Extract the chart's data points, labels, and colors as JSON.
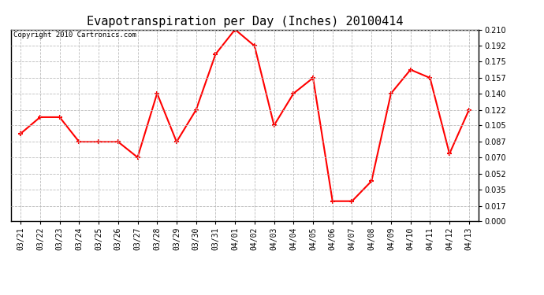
{
  "title": "Evapotranspiration per Day (Inches) 20100414",
  "copyright": "Copyright 2010 Cartronics.com",
  "x_labels": [
    "03/21",
    "03/22",
    "03/23",
    "03/24",
    "03/25",
    "03/26",
    "03/27",
    "03/28",
    "03/29",
    "03/30",
    "03/31",
    "04/01",
    "04/02",
    "04/03",
    "04/04",
    "04/05",
    "04/06",
    "04/07",
    "04/08",
    "04/09",
    "04/10",
    "04/11",
    "04/12",
    "04/13"
  ],
  "y_values": [
    0.096,
    0.114,
    0.114,
    0.087,
    0.087,
    0.087,
    0.07,
    0.14,
    0.087,
    0.122,
    0.183,
    0.21,
    0.192,
    0.105,
    0.14,
    0.157,
    0.022,
    0.022,
    0.044,
    0.14,
    0.166,
    0.157,
    0.074,
    0.122
  ],
  "line_color": "#ff0000",
  "marker": "+",
  "marker_size": 5,
  "marker_edge_width": 1.5,
  "line_width": 1.5,
  "background_color": "#ffffff",
  "grid_color": "#bbbbbb",
  "ylim": [
    0.0,
    0.21
  ],
  "yticks": [
    0.0,
    0.017,
    0.035,
    0.052,
    0.07,
    0.087,
    0.105,
    0.122,
    0.14,
    0.157,
    0.175,
    0.192,
    0.21
  ],
  "title_fontsize": 11,
  "tick_fontsize": 7,
  "copyright_fontsize": 6.5,
  "fig_width": 6.9,
  "fig_height": 3.75,
  "dpi": 100
}
